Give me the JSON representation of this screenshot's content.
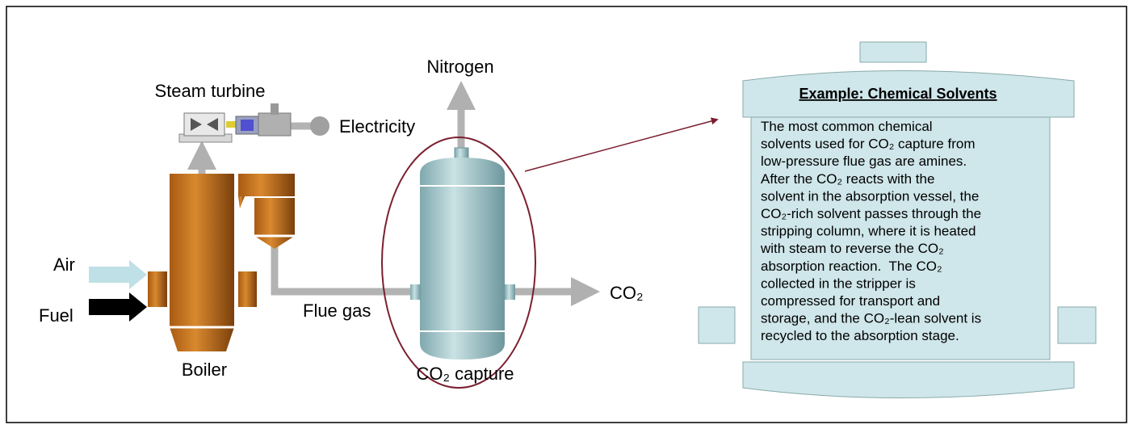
{
  "labels": {
    "nitrogen": "Nitrogen",
    "steam_turbine": "Steam turbine",
    "electricity": "Electricity",
    "air": "Air",
    "fuel": "Fuel",
    "flue_gas": "Flue gas",
    "co2": "CO₂",
    "boiler": "Boiler",
    "co2_capture": "CO₂ capture"
  },
  "panel": {
    "title": "Example: Chemical Solvents",
    "lines": [
      "The most common chemical",
      "solvents used for CO₂ capture from",
      "low-pressure flue gas are amines.",
      "After the CO₂ reacts with the",
      "solvent in the absorption vessel, the",
      "CO₂-rich solvent passes through the",
      "stripping column, where it is heated",
      "with steam to reverse the CO₂",
      "absorption reaction.  The CO₂",
      "collected in the stripper is",
      "compressed for transport and",
      "storage, and the CO₂-lean solvent is",
      "recycled to the absorption stage."
    ]
  }
}
